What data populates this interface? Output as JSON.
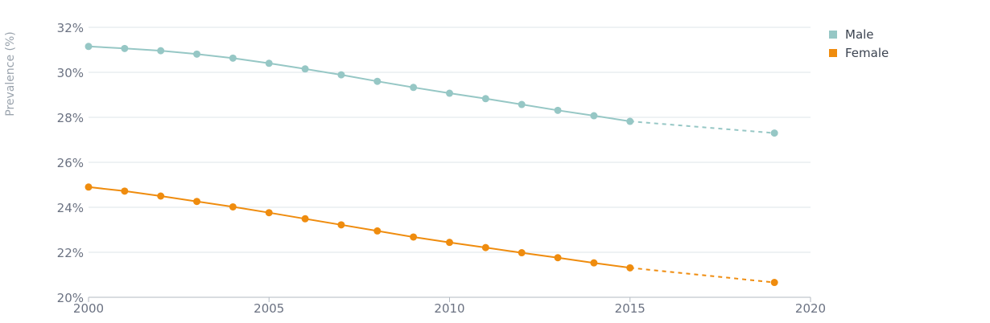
{
  "chart_data": {
    "type": "line",
    "title": "",
    "xlabel": "",
    "ylabel": "Prevalence (%)",
    "xlim": [
      2000,
      2020
    ],
    "ylim": [
      20,
      32
    ],
    "x_ticks": [
      2000,
      2005,
      2010,
      2015,
      2020
    ],
    "y_ticks": [
      20,
      22,
      24,
      26,
      28,
      30,
      32
    ],
    "y_tick_labels": [
      "20%",
      "22%",
      "24%",
      "26%",
      "28%",
      "30%",
      "32%"
    ],
    "grid": "horizontal",
    "legend_position": "top-right",
    "series": [
      {
        "name": "Male",
        "color": "#96c7c5",
        "x": [
          2000,
          2001,
          2002,
          2003,
          2004,
          2005,
          2006,
          2007,
          2008,
          2009,
          2010,
          2011,
          2012,
          2013,
          2014,
          2015
        ],
        "values": [
          31.15,
          31.06,
          30.96,
          30.81,
          30.63,
          30.4,
          30.15,
          29.89,
          29.6,
          29.33,
          29.07,
          28.83,
          28.57,
          28.31,
          28.07,
          27.82
        ],
        "projection": {
          "x": [
            2015,
            2019
          ],
          "values": [
            27.82,
            27.3
          ]
        }
      },
      {
        "name": "Female",
        "color": "#ef8c0e",
        "x": [
          2000,
          2001,
          2002,
          2003,
          2004,
          2005,
          2006,
          2007,
          2008,
          2009,
          2010,
          2011,
          2012,
          2013,
          2014,
          2015
        ],
        "values": [
          24.9,
          24.72,
          24.5,
          24.26,
          24.02,
          23.76,
          23.49,
          23.22,
          22.95,
          22.68,
          22.44,
          22.21,
          21.98,
          21.76,
          21.53,
          21.31
        ],
        "projection": {
          "x": [
            2015,
            2019
          ],
          "values": [
            21.31,
            20.66
          ]
        }
      }
    ]
  }
}
